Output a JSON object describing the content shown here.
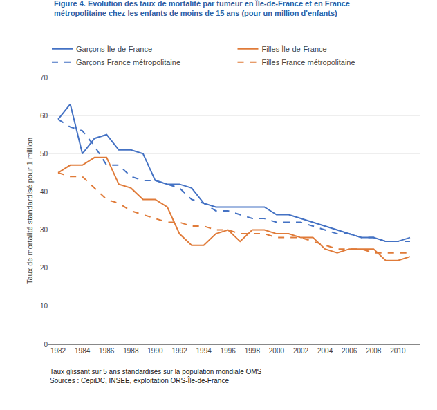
{
  "chart_data": {
    "type": "line",
    "title": "Figure 4. Evolution des taux de mortalité par tumeur en Île-de-France et en France\nmétropolitaine chez les enfants de moins de 15 ans (pour un million d'enfants)",
    "y_label": "Taux de mortalité standardisé pour 1 million",
    "annotations": [
      "Taux glissant sur 5 ans standardisés sur la population mondiale OMS",
      "Sources : CepiDC, INSEE, exploitation ORS-Île-de-France"
    ],
    "x": [
      1982,
      1983,
      1984,
      1985,
      1986,
      1987,
      1988,
      1989,
      1990,
      1991,
      1992,
      1993,
      1994,
      1995,
      1996,
      1997,
      1998,
      1999,
      2000,
      2001,
      2002,
      2003,
      2004,
      2005,
      2006,
      2007,
      2008,
      2009,
      2010,
      2011
    ],
    "series": [
      {
        "name": "Garçons Île-de-France",
        "color": "#4472C4",
        "line_style": "solid",
        "values": [
          59,
          63,
          50,
          54,
          55,
          51,
          51,
          50,
          43,
          42,
          42,
          41,
          37,
          36,
          36,
          36,
          36,
          36,
          34,
          34,
          33,
          32,
          31,
          30,
          29,
          28,
          28,
          27,
          27,
          28
        ]
      },
      {
        "name": "Filles Île-de-France",
        "color": "#E07B39",
        "line_style": "solid",
        "values": [
          45,
          47,
          47,
          49,
          49,
          42,
          41,
          38,
          38,
          36,
          29,
          26,
          26,
          29,
          30,
          27,
          30,
          30,
          29,
          29,
          28,
          28,
          25,
          24,
          25,
          25,
          25,
          22,
          22,
          23
        ]
      },
      {
        "name": "Garçons France métropolitaine",
        "color": "#4472C4",
        "line_style": "dashed",
        "values": [
          59,
          57,
          56,
          52,
          47,
          47,
          44,
          43,
          43,
          42,
          41,
          38,
          37,
          35,
          35,
          34,
          33,
          33,
          32,
          32,
          32,
          31,
          30,
          29,
          29,
          28,
          28,
          27,
          27,
          27
        ]
      },
      {
        "name": "Filles France métropolitaine",
        "color": "#E07B39",
        "line_style": "dashed",
        "values": [
          45,
          44,
          44,
          41,
          38,
          37,
          35,
          34,
          33,
          32,
          32,
          31,
          31,
          30,
          30,
          29,
          29,
          29,
          28,
          28,
          28,
          27,
          26,
          25,
          25,
          25,
          24,
          24,
          24,
          24
        ]
      }
    ],
    "title_color": "#2E5FA3",
    "xlim": [
      1981.2,
      2011.8
    ],
    "xticks": [
      1982,
      1984,
      1986,
      1988,
      1990,
      1992,
      1994,
      1996,
      1998,
      2000,
      2002,
      2004,
      2006,
      2008,
      2010
    ],
    "ylim": [
      0,
      70
    ],
    "yticks": [
      0,
      10,
      20,
      30,
      40,
      50,
      60,
      70
    ],
    "grid": "y",
    "legend": "top"
  }
}
